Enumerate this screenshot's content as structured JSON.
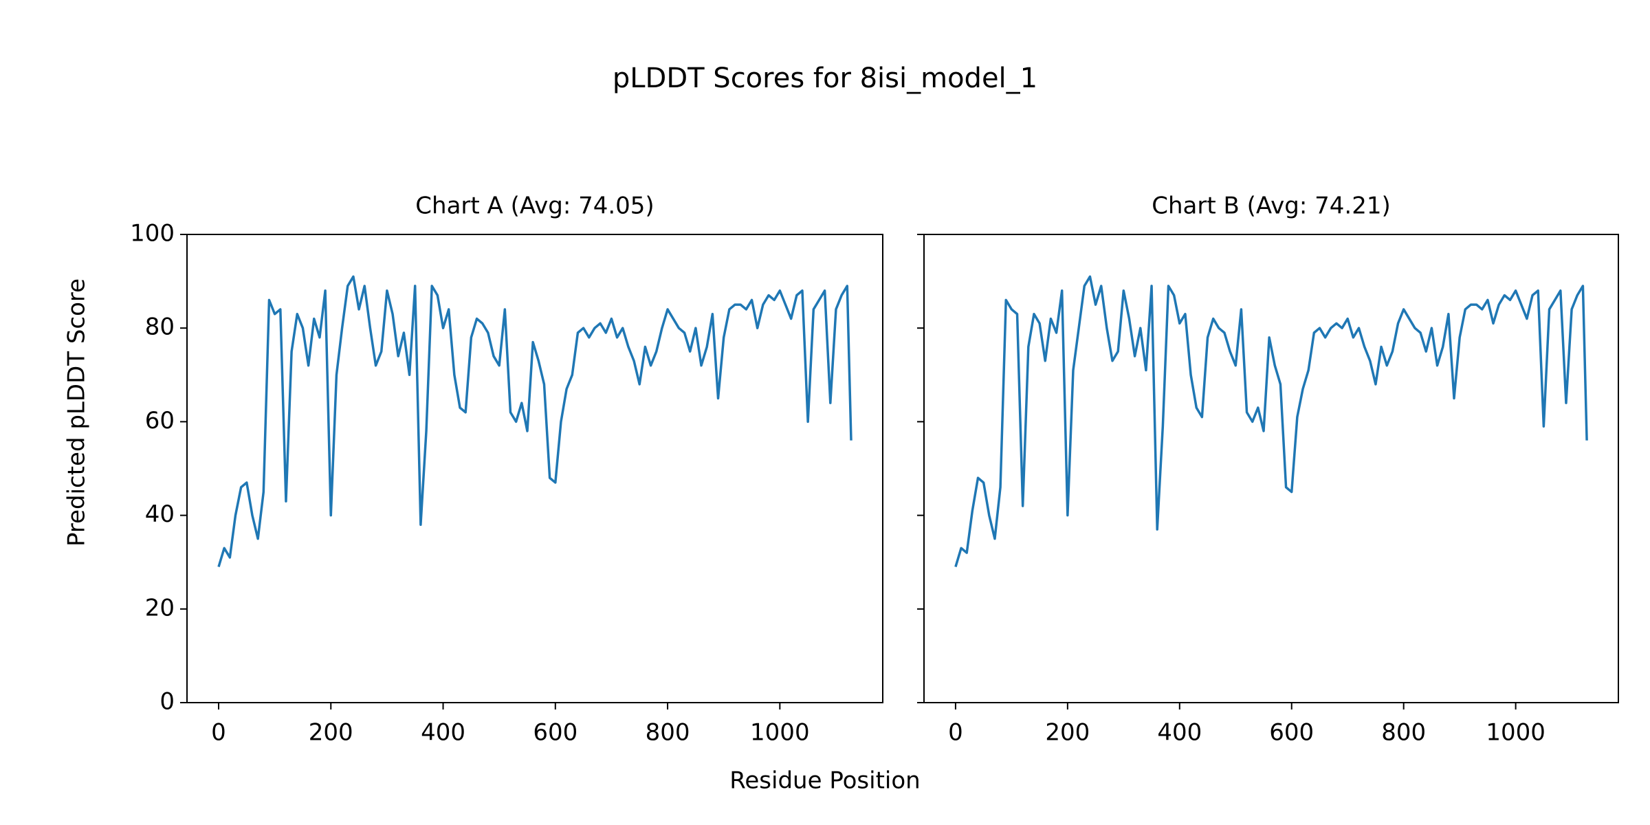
{
  "title": "pLDDT Scores for 8isi_model_1",
  "xlabel": "Residue Position",
  "ylabel": "Predicted pLDDT Score",
  "chart_data": [
    {
      "type": "line",
      "title": "Chart A (Avg: 74.05)",
      "color": "#1f77b4",
      "xlim": [
        -56.35,
        1183.35
      ],
      "ylim": [
        0,
        100
      ],
      "xticks": [
        0,
        200,
        400,
        600,
        800,
        1000
      ],
      "yticks": [
        0,
        20,
        40,
        60,
        80,
        100
      ],
      "x": [
        0,
        10,
        20,
        30,
        40,
        50,
        60,
        70,
        80,
        90,
        100,
        110,
        120,
        130,
        140,
        150,
        160,
        170,
        180,
        190,
        200,
        210,
        220,
        230,
        240,
        250,
        260,
        270,
        280,
        290,
        300,
        310,
        320,
        330,
        340,
        350,
        360,
        370,
        380,
        390,
        400,
        410,
        420,
        430,
        440,
        450,
        460,
        470,
        480,
        490,
        500,
        510,
        520,
        530,
        540,
        550,
        560,
        570,
        580,
        590,
        600,
        610,
        620,
        630,
        640,
        650,
        660,
        670,
        680,
        690,
        700,
        710,
        720,
        730,
        740,
        750,
        760,
        770,
        780,
        790,
        800,
        810,
        820,
        830,
        840,
        850,
        860,
        870,
        880,
        890,
        900,
        910,
        920,
        930,
        940,
        950,
        960,
        970,
        980,
        990,
        1000,
        1010,
        1020,
        1030,
        1040,
        1050,
        1060,
        1070,
        1080,
        1090,
        1100,
        1110,
        1120,
        1127
      ],
      "values": [
        29,
        33,
        31,
        40,
        46,
        47,
        40,
        35,
        45,
        86,
        83,
        84,
        43,
        75,
        83,
        80,
        72,
        82,
        78,
        88,
        40,
        70,
        80,
        89,
        91,
        84,
        89,
        80,
        72,
        75,
        88,
        83,
        74,
        79,
        70,
        89,
        38,
        58,
        89,
        87,
        80,
        84,
        70,
        63,
        62,
        78,
        82,
        81,
        79,
        74,
        72,
        84,
        62,
        60,
        64,
        58,
        77,
        73,
        68,
        48,
        47,
        60,
        67,
        70,
        79,
        80,
        78,
        80,
        81,
        79,
        82,
        78,
        80,
        76,
        73,
        68,
        76,
        72,
        75,
        80,
        84,
        82,
        80,
        79,
        75,
        80,
        72,
        76,
        83,
        65,
        78,
        84,
        85,
        85,
        84,
        86,
        80,
        85,
        87,
        86,
        88,
        85,
        82,
        87,
        88,
        60,
        84,
        86,
        88,
        64,
        84,
        87,
        89,
        56
      ]
    },
    {
      "type": "line",
      "title": "Chart B (Avg: 74.21)",
      "color": "#1f77b4",
      "xlim": [
        -56.35,
        1183.35
      ],
      "ylim": [
        0,
        100
      ],
      "xticks": [
        0,
        200,
        400,
        600,
        800,
        1000
      ],
      "yticks": [
        0,
        20,
        40,
        60,
        80,
        100
      ],
      "x": [
        0,
        10,
        20,
        30,
        40,
        50,
        60,
        70,
        80,
        90,
        100,
        110,
        120,
        130,
        140,
        150,
        160,
        170,
        180,
        190,
        200,
        210,
        220,
        230,
        240,
        250,
        260,
        270,
        280,
        290,
        300,
        310,
        320,
        330,
        340,
        350,
        360,
        370,
        380,
        390,
        400,
        410,
        420,
        430,
        440,
        450,
        460,
        470,
        480,
        490,
        500,
        510,
        520,
        530,
        540,
        550,
        560,
        570,
        580,
        590,
        600,
        610,
        620,
        630,
        640,
        650,
        660,
        670,
        680,
        690,
        700,
        710,
        720,
        730,
        740,
        750,
        760,
        770,
        780,
        790,
        800,
        810,
        820,
        830,
        840,
        850,
        860,
        870,
        880,
        890,
        900,
        910,
        920,
        930,
        940,
        950,
        960,
        970,
        980,
        990,
        1000,
        1010,
        1020,
        1030,
        1040,
        1050,
        1060,
        1070,
        1080,
        1090,
        1100,
        1110,
        1120,
        1127
      ],
      "values": [
        29,
        33,
        32,
        41,
        48,
        47,
        40,
        35,
        46,
        86,
        84,
        83,
        42,
        76,
        83,
        81,
        73,
        82,
        79,
        88,
        40,
        71,
        80,
        89,
        91,
        85,
        89,
        80,
        73,
        75,
        88,
        82,
        74,
        80,
        71,
        89,
        37,
        59,
        89,
        87,
        81,
        83,
        70,
        63,
        61,
        78,
        82,
        80,
        79,
        75,
        72,
        84,
        62,
        60,
        63,
        58,
        78,
        72,
        68,
        46,
        45,
        61,
        67,
        71,
        79,
        80,
        78,
        80,
        81,
        80,
        82,
        78,
        80,
        76,
        73,
        68,
        76,
        72,
        75,
        81,
        84,
        82,
        80,
        79,
        75,
        80,
        72,
        76,
        83,
        65,
        78,
        84,
        85,
        85,
        84,
        86,
        81,
        85,
        87,
        86,
        88,
        85,
        82,
        87,
        88,
        59,
        84,
        86,
        88,
        64,
        84,
        87,
        89,
        56
      ]
    }
  ]
}
